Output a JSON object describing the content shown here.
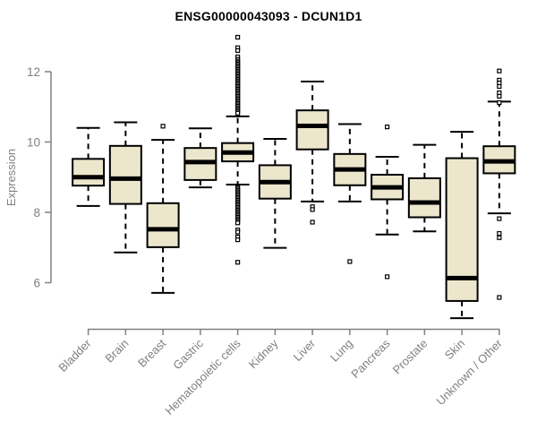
{
  "chart_data": {
    "type": "boxplot",
    "title": "ENSG00000043093 - DCUN1D1",
    "ylabel": "Expression",
    "xlabel": "",
    "ylim": [
      6,
      12
    ],
    "yticks": [
      6,
      8,
      10,
      12
    ],
    "grid": false,
    "legend": false,
    "colors": {
      "box_fill": "#ece6cc",
      "box_stroke": "#000000",
      "median": "#000000",
      "axis": "#808080",
      "tick_label": "#808080",
      "title": "#000000",
      "outlier_fill": "#ffffff"
    },
    "categories": [
      "Bladder",
      "Brain",
      "Breast",
      "Gastric",
      "Hematopoietic cells",
      "Kidney",
      "Liver",
      "Lung",
      "Pancreas",
      "Prostate",
      "Skin",
      "Unknown / Other"
    ],
    "boxes": [
      {
        "category": "Bladder",
        "whisker_low": 8.18,
        "q1": 8.76,
        "median": 9.0,
        "q3": 9.52,
        "whisker_high": 10.4,
        "outliers": []
      },
      {
        "category": "Brain",
        "whisker_low": 6.86,
        "q1": 8.24,
        "median": 8.96,
        "q3": 9.89,
        "whisker_high": 10.56,
        "outliers": []
      },
      {
        "category": "Breast",
        "whisker_low": 5.71,
        "q1": 7.01,
        "median": 7.52,
        "q3": 8.26,
        "whisker_high": 10.06,
        "outliers": [
          10.45
        ]
      },
      {
        "category": "Gastric",
        "whisker_low": 8.71,
        "q1": 8.92,
        "median": 9.43,
        "q3": 9.83,
        "whisker_high": 10.39,
        "outliers": []
      },
      {
        "category": "Hematopoietic cells",
        "whisker_low": 8.79,
        "q1": 9.45,
        "median": 9.7,
        "q3": 9.97,
        "whisker_high": 10.73,
        "outliers": [
          12.98,
          12.68,
          12.6,
          12.42,
          12.35,
          12.3,
          12.26,
          12.22,
          12.18,
          12.14,
          12.1,
          12.06,
          12.02,
          11.98,
          11.94,
          11.9,
          11.86,
          11.82,
          11.78,
          11.74,
          11.7,
          11.66,
          11.62,
          11.58,
          11.54,
          11.5,
          11.46,
          11.42,
          11.38,
          11.34,
          11.3,
          11.26,
          11.22,
          11.18,
          11.14,
          11.1,
          11.06,
          11.02,
          10.98,
          10.94,
          10.9,
          10.86,
          10.82,
          8.7,
          8.66,
          8.62,
          8.58,
          8.54,
          8.5,
          8.46,
          8.42,
          8.38,
          8.34,
          8.3,
          8.26,
          8.22,
          8.18,
          8.14,
          8.1,
          8.06,
          8.02,
          7.98,
          7.94,
          7.9,
          7.86,
          7.82,
          7.78,
          7.74,
          7.7,
          7.5,
          7.44,
          7.3,
          7.22,
          6.58
        ]
      },
      {
        "category": "Kidney",
        "whisker_low": 6.99,
        "q1": 8.39,
        "median": 8.86,
        "q3": 9.34,
        "whisker_high": 10.09,
        "outliers": []
      },
      {
        "category": "Liver",
        "whisker_low": 8.31,
        "q1": 9.79,
        "median": 10.46,
        "q3": 10.9,
        "whisker_high": 11.72,
        "outliers": [
          8.16,
          8.08,
          7.72
        ]
      },
      {
        "category": "Lung",
        "whisker_low": 8.31,
        "q1": 8.77,
        "median": 9.22,
        "q3": 9.66,
        "whisker_high": 10.51,
        "outliers": [
          6.6
        ]
      },
      {
        "category": "Pancreas",
        "whisker_low": 7.37,
        "q1": 8.37,
        "median": 8.71,
        "q3": 9.07,
        "whisker_high": 9.58,
        "outliers": [
          10.43,
          6.17
        ]
      },
      {
        "category": "Prostate",
        "whisker_low": 7.46,
        "q1": 7.86,
        "median": 8.28,
        "q3": 8.97,
        "whisker_high": 9.92,
        "outliers": []
      },
      {
        "category": "Skin",
        "whisker_low": 4.99,
        "q1": 5.48,
        "median": 6.13,
        "q3": 9.54,
        "whisker_high": 10.29,
        "outliers": []
      },
      {
        "category": "Unknown / Other",
        "whisker_low": 7.97,
        "q1": 9.11,
        "median": 9.45,
        "q3": 9.88,
        "whisker_high": 11.15,
        "outliers": [
          12.02,
          11.76,
          11.68,
          11.58,
          11.4,
          11.3,
          11.12,
          7.82,
          7.4,
          7.28,
          5.58
        ]
      }
    ]
  }
}
